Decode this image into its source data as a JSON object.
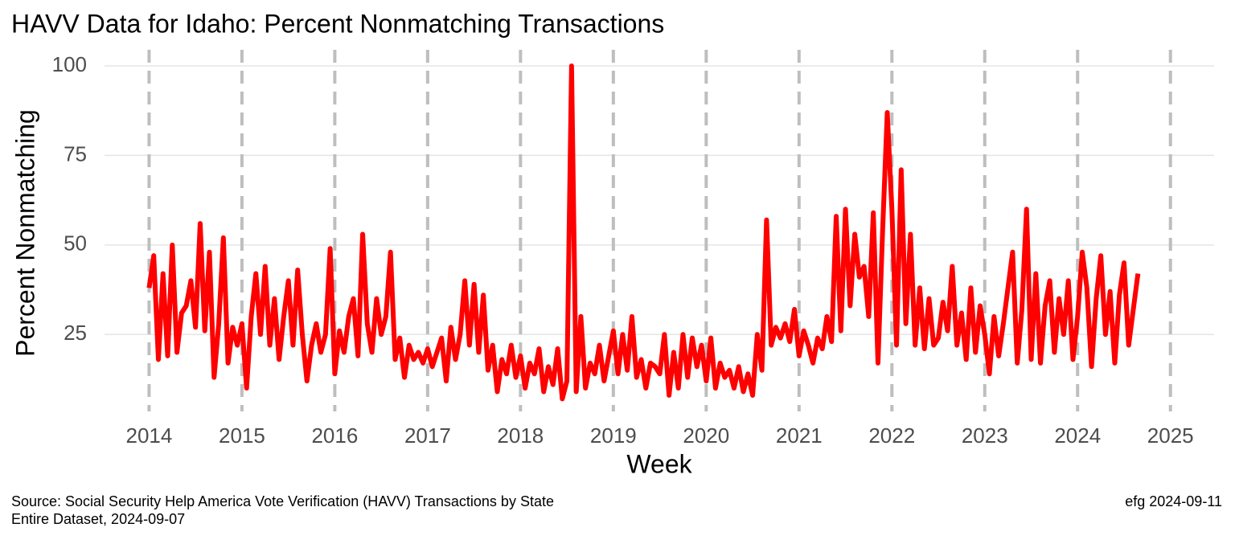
{
  "chart_data": {
    "type": "line",
    "title": "HAVV Data for Idaho:  Percent Nonmatching Transactions",
    "x_label": "Week",
    "y_label": "Percent Nonmatching",
    "caption_left": [
      "Source:  Social Security Help America Vote Verification (HAVV) Transactions by State",
      "Entire Dataset, 2024-09-07"
    ],
    "caption_right": "efg 2024-09-11",
    "xlim": [
      2013.52,
      2025.47
    ],
    "ylim": [
      3.5,
      104.5
    ],
    "xticks": [
      2014,
      2015,
      2016,
      2017,
      2018,
      2019,
      2020,
      2021,
      2022,
      2023,
      2024,
      2025
    ],
    "yticks": [
      25,
      50,
      75,
      100
    ],
    "grid": true,
    "series": [
      {
        "name": "Percent Nonmatching",
        "color": "#ff0000",
        "x": [
          2014.0,
          2014.05,
          2014.1,
          2014.15,
          2014.2,
          2014.25,
          2014.3,
          2014.35,
          2014.4,
          2014.45,
          2014.5,
          2014.55,
          2014.6,
          2014.65,
          2014.7,
          2014.75,
          2014.8,
          2014.85,
          2014.9,
          2014.95,
          2015.0,
          2015.05,
          2015.1,
          2015.15,
          2015.2,
          2015.25,
          2015.3,
          2015.35,
          2015.4,
          2015.45,
          2015.5,
          2015.55,
          2015.6,
          2015.65,
          2015.7,
          2015.75,
          2015.8,
          2015.85,
          2015.9,
          2015.95,
          2016.0,
          2016.05,
          2016.1,
          2016.15,
          2016.2,
          2016.25,
          2016.3,
          2016.35,
          2016.4,
          2016.45,
          2016.5,
          2016.55,
          2016.6,
          2016.65,
          2016.7,
          2016.75,
          2016.8,
          2016.85,
          2016.9,
          2016.95,
          2017.0,
          2017.05,
          2017.1,
          2017.15,
          2017.2,
          2017.25,
          2017.3,
          2017.35,
          2017.4,
          2017.45,
          2017.5,
          2017.55,
          2017.6,
          2017.65,
          2017.7,
          2017.75,
          2017.8,
          2017.85,
          2017.9,
          2017.95,
          2018.0,
          2018.05,
          2018.1,
          2018.15,
          2018.2,
          2018.25,
          2018.3,
          2018.35,
          2018.4,
          2018.45,
          2018.5,
          2018.55,
          2018.6,
          2018.65,
          2018.7,
          2018.75,
          2018.8,
          2018.85,
          2018.9,
          2018.95,
          2019.0,
          2019.05,
          2019.1,
          2019.15,
          2019.2,
          2019.25,
          2019.3,
          2019.35,
          2019.4,
          2019.45,
          2019.5,
          2019.55,
          2019.6,
          2019.65,
          2019.7,
          2019.75,
          2019.8,
          2019.85,
          2019.9,
          2019.95,
          2020.0,
          2020.05,
          2020.1,
          2020.15,
          2020.2,
          2020.25,
          2020.3,
          2020.35,
          2020.4,
          2020.45,
          2020.5,
          2020.55,
          2020.6,
          2020.65,
          2020.7,
          2020.75,
          2020.8,
          2020.85,
          2020.9,
          2020.95,
          2021.0,
          2021.05,
          2021.1,
          2021.15,
          2021.2,
          2021.25,
          2021.3,
          2021.35,
          2021.4,
          2021.45,
          2021.5,
          2021.55,
          2021.6,
          2021.65,
          2021.7,
          2021.75,
          2021.8,
          2021.85,
          2021.9,
          2021.95,
          2022.0,
          2022.05,
          2022.1,
          2022.15,
          2022.2,
          2022.25,
          2022.3,
          2022.35,
          2022.4,
          2022.45,
          2022.5,
          2022.55,
          2022.6,
          2022.65,
          2022.7,
          2022.75,
          2022.8,
          2022.85,
          2022.9,
          2022.95,
          2023.0,
          2023.05,
          2023.1,
          2023.15,
          2023.2,
          2023.25,
          2023.3,
          2023.35,
          2023.4,
          2023.45,
          2023.5,
          2023.55,
          2023.6,
          2023.65,
          2023.7,
          2023.75,
          2023.8,
          2023.85,
          2023.9,
          2023.95,
          2024.0,
          2024.05,
          2024.1,
          2024.15,
          2024.2,
          2024.25,
          2024.3,
          2024.35,
          2024.4,
          2024.45,
          2024.5,
          2024.55,
          2024.6,
          2024.65
        ],
        "values": [
          38,
          47,
          18,
          42,
          19,
          50,
          20,
          31,
          33,
          40,
          27,
          56,
          26,
          48,
          13,
          28,
          52,
          17,
          27,
          22,
          28,
          10,
          30,
          42,
          25,
          44,
          22,
          35,
          18,
          30,
          40,
          22,
          43,
          25,
          12,
          22,
          28,
          20,
          25,
          49,
          14,
          26,
          20,
          30,
          35,
          19,
          53,
          28,
          20,
          35,
          25,
          30,
          48,
          18,
          24,
          13,
          22,
          18,
          20,
          17,
          21,
          16,
          20,
          24,
          12,
          27,
          18,
          25,
          40,
          22,
          39,
          20,
          36,
          15,
          22,
          9,
          18,
          14,
          22,
          13,
          19,
          10,
          17,
          14,
          21,
          9,
          16,
          11,
          21,
          7,
          12,
          100,
          9,
          30,
          10,
          17,
          14,
          22,
          12,
          19,
          26,
          14,
          25,
          15,
          30,
          13,
          18,
          10,
          17,
          16,
          14,
          25,
          8,
          20,
          10,
          25,
          13,
          24,
          16,
          22,
          12,
          24,
          10,
          17,
          13,
          15,
          10,
          16,
          9,
          14,
          8,
          25,
          15,
          57,
          22,
          27,
          24,
          28,
          23,
          32,
          19,
          26,
          22,
          17,
          24,
          21,
          30,
          23,
          58,
          26,
          60,
          33,
          53,
          41,
          44,
          30,
          59,
          17,
          54,
          87,
          60,
          22,
          71,
          28,
          53,
          22,
          38,
          21,
          35,
          22,
          24,
          34,
          26,
          44,
          22,
          31,
          18,
          38,
          20,
          33,
          25,
          14,
          30,
          19,
          28,
          38,
          48,
          17,
          32,
          60,
          18,
          42,
          17,
          33,
          40,
          20,
          35,
          25,
          40,
          18,
          30,
          48,
          38,
          16,
          35,
          47,
          25,
          37,
          17,
          36,
          45,
          22,
          32,
          42
        ]
      }
    ]
  }
}
